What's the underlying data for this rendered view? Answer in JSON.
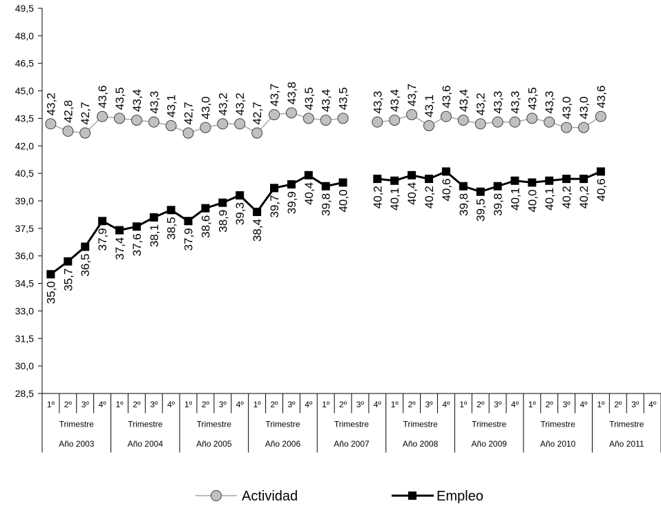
{
  "chart_data": {
    "type": "line",
    "y_ticks": [
      "28,5",
      "30,0",
      "31,5",
      "33,0",
      "34,5",
      "36,0",
      "37,5",
      "39,0",
      "40,5",
      "42,0",
      "43,5",
      "45,0",
      "46,5",
      "48,0",
      "49,5"
    ],
    "ylim": [
      28.5,
      49.5
    ],
    "quarter_labels": [
      "1º",
      "2º",
      "3º",
      "4º"
    ],
    "trimestre_label": "Trimestre",
    "years": [
      "Año 2003",
      "Año 2004",
      "Año 2005",
      "Año 2006",
      "Año 2007",
      "Año 2008",
      "Año 2009",
      "Año 2010",
      "Año 2011"
    ],
    "series": [
      {
        "name": "Actividad",
        "color": "#a6a6a6",
        "marker": "circle",
        "values": [
          43.2,
          42.8,
          42.7,
          43.6,
          43.5,
          43.4,
          43.3,
          43.1,
          42.7,
          43.0,
          43.2,
          43.2,
          42.7,
          43.7,
          43.8,
          43.5,
          43.4,
          43.5,
          null,
          43.3,
          43.4,
          43.7,
          43.1,
          43.6,
          43.4,
          43.2,
          43.3,
          43.3,
          43.5,
          43.3,
          43.0,
          43.0,
          43.6
        ],
        "labels": [
          "43,2",
          "42,8",
          "42,7",
          "43,6",
          "43,5",
          "43,4",
          "43,3",
          "43,1",
          "42,7",
          "43,0",
          "43,2",
          "43,2",
          "42,7",
          "43,7",
          "43,8",
          "43,5",
          "43,4",
          "43,5",
          null,
          "43,3",
          "43,4",
          "43,7",
          "43,1",
          "43,6",
          "43,4",
          "43,2",
          "43,3",
          "43,3",
          "43,5",
          "43,3",
          "43,0",
          "43,0",
          "43,6"
        ]
      },
      {
        "name": "Empleo",
        "color": "#000000",
        "marker": "square",
        "values": [
          35.0,
          35.7,
          36.5,
          37.9,
          37.4,
          37.6,
          38.1,
          38.5,
          37.9,
          38.6,
          38.9,
          39.3,
          38.4,
          39.7,
          39.9,
          40.4,
          39.8,
          40.0,
          null,
          40.2,
          40.1,
          40.4,
          40.2,
          40.6,
          39.8,
          39.5,
          39.8,
          40.1,
          40.0,
          40.1,
          40.2,
          40.2,
          40.6
        ],
        "labels": [
          "35,0",
          "35,7",
          "36,5",
          "37,9",
          "37,4",
          "37,6",
          "38,1",
          "38,5",
          "37,9",
          "38,6",
          "38,9",
          "39,3",
          "38,4",
          "39,7",
          "39,9",
          "40,4",
          "39,8",
          "40,0",
          null,
          "40,2",
          "40,1",
          "40,4",
          "40,2",
          "40,6",
          "39,8",
          "39,5",
          "39,8",
          "40,1",
          "40,0",
          "40,1",
          "40,2",
          "40,2",
          "40,6"
        ]
      }
    ]
  }
}
